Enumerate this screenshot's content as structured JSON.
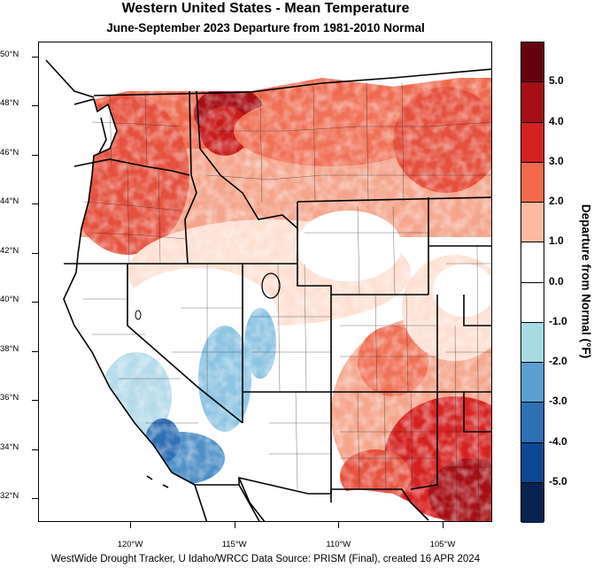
{
  "title": "Western United States - Mean Temperature",
  "subtitle": "June-September 2023  Departure from 1981-2010 Normal",
  "footer": "WestWide Drought Tracker, U Idaho/WRCC Data Source: PRISM (Final), created 16 APR 2024",
  "latitude_labels": [
    {
      "label": "50°N",
      "value": 50
    },
    {
      "label": "48°N",
      "value": 48
    },
    {
      "label": "46°N",
      "value": 46
    },
    {
      "label": "44°N",
      "value": 44
    },
    {
      "label": "42°N",
      "value": 42
    },
    {
      "label": "40°N",
      "value": 40
    },
    {
      "label": "38°N",
      "value": 38
    },
    {
      "label": "36°N",
      "value": 36
    },
    {
      "label": "34°N",
      "value": 34
    },
    {
      "label": "32°N",
      "value": 32
    }
  ],
  "longitude_labels": [
    {
      "label": "120°W",
      "value": -120
    },
    {
      "label": "115°W",
      "value": -115
    },
    {
      "label": "110°W",
      "value": -110
    },
    {
      "label": "105°W",
      "value": -105
    }
  ],
  "legend": {
    "title": "Departure from Normal (°F)",
    "tick_labels": [
      "5.0",
      "4.0",
      "3.0",
      "2.0",
      "1.0",
      "0.0",
      "-1.0",
      "-2.0",
      "-3.0",
      "-4.0",
      "-5.0"
    ],
    "colors": [
      "#67000d",
      "#a50f15",
      "#d52221",
      "#f26a4c",
      "#fcbba1",
      "#ffffff",
      "#ffffff",
      "#a6dbe3",
      "#5a9fd0",
      "#2f6fb4",
      "#0b4a93",
      "#08234f"
    ]
  }
}
